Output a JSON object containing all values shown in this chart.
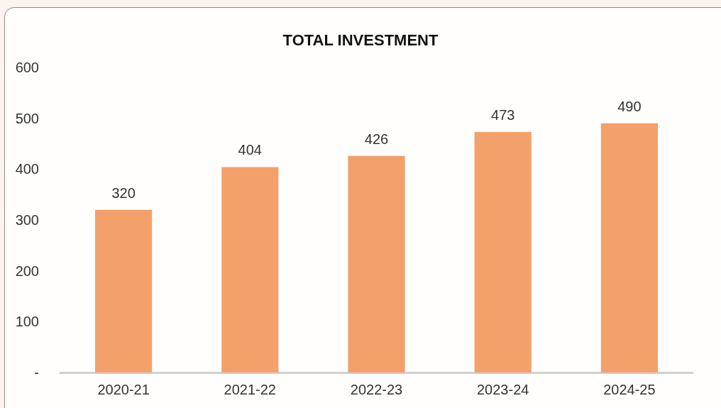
{
  "chart_data": {
    "type": "bar",
    "title": "TOTAL INVESTMENT",
    "categories": [
      "2020-21",
      "2021-22",
      "2022-23",
      "2023-24",
      "2024-25"
    ],
    "values": [
      320,
      404,
      426,
      473,
      490
    ],
    "color": "#f4a06a",
    "ylim": [
      0,
      600
    ],
    "yticks": [
      {
        "value": 0,
        "label": "-"
      },
      100,
      200,
      300,
      400,
      500,
      600
    ],
    "grid": false,
    "data_labels": true
  }
}
